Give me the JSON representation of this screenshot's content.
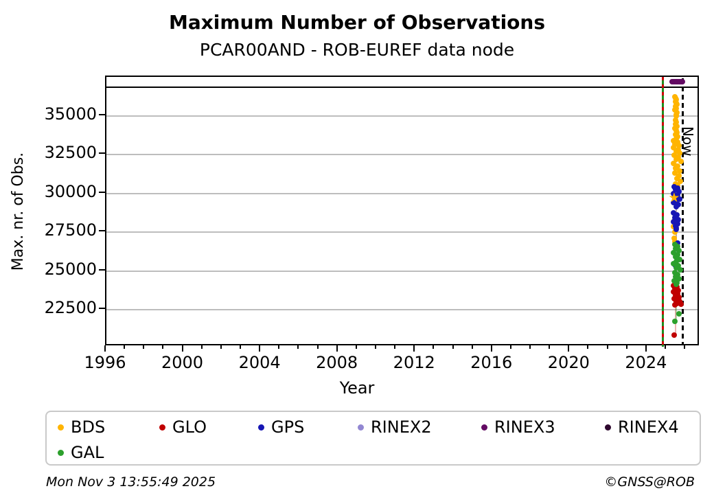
{
  "title": "Maximum Number of Observations",
  "subtitle": "PCAR00AND - ROB-EUREF data node",
  "footer": {
    "timestamp": "Mon Nov  3 13:55:49 2025",
    "credit": "©GNSS@ROB"
  },
  "now_label": "Now",
  "colors": {
    "BDS": "#ffb400",
    "GLO": "#c00000",
    "GPS": "#1616b4",
    "GAL": "#2ca02c",
    "RINEX2": "#9287d2",
    "RINEX3": "#630b63",
    "RINEX4": "#2e082e",
    "grid": "#bdbdbd",
    "axis": "#000000",
    "start_line_green": "#1e8c1e",
    "start_line_red": "#cc0000",
    "now_line": "#000000"
  },
  "legend": {
    "rows": [
      [
        {
          "label": "BDS",
          "color": "BDS"
        },
        {
          "label": "GLO",
          "color": "GLO"
        },
        {
          "label": "GPS",
          "color": "GPS"
        },
        {
          "label": "RINEX2",
          "color": "RINEX2"
        },
        {
          "label": "RINEX3",
          "color": "RINEX3"
        },
        {
          "label": "RINEX4",
          "color": "RINEX4"
        }
      ],
      [
        {
          "label": "GAL",
          "color": "GAL"
        }
      ]
    ]
  },
  "chart_data": {
    "type": "scatter",
    "title": "Maximum Number of Observations",
    "subtitle": "PCAR00AND - ROB-EUREF data node",
    "xlabel": "Year",
    "ylabel": "Max. nr. of Obs.",
    "xlim": [
      1996,
      2026.74
    ],
    "ylim": [
      20130,
      37522
    ],
    "x_major_ticks": [
      1996,
      2000,
      2004,
      2008,
      2012,
      2016,
      2020,
      2024
    ],
    "x_minor_tick_step_years": 1,
    "x_minor_tick_last_year": 2026,
    "y_ticks": [
      22500,
      25000,
      27500,
      30000,
      32500,
      35000
    ],
    "grid": "horizontal-only",
    "legend_position": "below",
    "header_strip_divider_value": 36860,
    "vlines": [
      {
        "name": "data-start-line",
        "year": 2024.79,
        "style": "green-with-red-dashes"
      },
      {
        "name": "now-line",
        "year": 2025.84,
        "style": "black-dashed",
        "label": "Now"
      }
    ],
    "series": [
      {
        "name": "BDS",
        "color": "BDS",
        "connector": {
          "x": 2025.48,
          "from": 36250,
          "to": 26880,
          "opacity": 0.35
        },
        "points": [
          [
            2025.43,
            36250
          ],
          [
            2025.47,
            36160
          ],
          [
            2025.51,
            36060
          ],
          [
            2025.45,
            35950
          ],
          [
            2025.49,
            35850
          ],
          [
            2025.53,
            35740
          ],
          [
            2025.46,
            35620
          ],
          [
            2025.5,
            35500
          ],
          [
            2025.44,
            35380
          ],
          [
            2025.52,
            35240
          ],
          [
            2025.48,
            35100
          ],
          [
            2025.5,
            34980
          ],
          [
            2025.45,
            34720
          ],
          [
            2025.51,
            34600
          ],
          [
            2025.47,
            34470
          ],
          [
            2025.54,
            34340
          ],
          [
            2025.42,
            34210
          ],
          [
            2025.49,
            34080
          ],
          [
            2025.53,
            33950
          ],
          [
            2025.46,
            33820
          ],
          [
            2025.56,
            33680
          ],
          [
            2025.5,
            33550
          ],
          [
            2025.34,
            33400
          ],
          [
            2025.56,
            33310
          ],
          [
            2025.44,
            33200
          ],
          [
            2025.64,
            33090
          ],
          [
            2025.37,
            32970
          ],
          [
            2025.59,
            32850
          ],
          [
            2025.48,
            32730
          ],
          [
            2025.69,
            32610
          ],
          [
            2025.4,
            32480
          ],
          [
            2025.61,
            32350
          ],
          [
            2025.51,
            32210
          ],
          [
            2025.73,
            32070
          ],
          [
            2025.35,
            31930
          ],
          [
            2025.57,
            31790
          ],
          [
            2025.46,
            31640
          ],
          [
            2025.67,
            31480
          ],
          [
            2025.41,
            31320
          ],
          [
            2025.63,
            31150
          ],
          [
            2025.53,
            30980
          ],
          [
            2025.71,
            30810
          ],
          [
            2025.47,
            30640
          ],
          [
            2025.58,
            30540
          ],
          [
            2025.39,
            28230
          ],
          [
            2025.36,
            27880
          ],
          [
            2025.41,
            27500
          ],
          [
            2025.38,
            27120
          ],
          [
            2025.43,
            26880
          ]
        ],
        "special_markers": [
          {
            "shape": "star",
            "point": [
              2025.44,
              29690
            ]
          }
        ]
      },
      {
        "name": "GLO",
        "color": "GLO",
        "connector": {
          "x": 2025.47,
          "from": 24090,
          "to": 20880,
          "opacity": 0.3
        },
        "points": [
          [
            2025.37,
            24090
          ],
          [
            2025.53,
            23990
          ],
          [
            2025.44,
            23880
          ],
          [
            2025.6,
            23770
          ],
          [
            2025.35,
            23660
          ],
          [
            2025.56,
            23550
          ],
          [
            2025.46,
            23440
          ],
          [
            2025.64,
            23330
          ],
          [
            2025.4,
            23220
          ],
          [
            2025.58,
            23110
          ],
          [
            2025.48,
            23000
          ],
          [
            2025.52,
            22920
          ],
          [
            2025.68,
            23050
          ],
          [
            2025.72,
            22960
          ],
          [
            2025.76,
            22890
          ],
          [
            2025.42,
            22850
          ],
          [
            2025.4,
            20880
          ]
        ]
      },
      {
        "name": "GPS",
        "color": "GPS",
        "connector": {
          "x": 2025.49,
          "from": 30460,
          "to": 25350,
          "opacity": 0.3
        },
        "points": [
          [
            2025.39,
            30460
          ],
          [
            2025.56,
            30360
          ],
          [
            2025.46,
            30250
          ],
          [
            2025.63,
            30130
          ],
          [
            2025.36,
            30010
          ],
          [
            2025.58,
            29890
          ],
          [
            2025.44,
            29770
          ],
          [
            2025.69,
            29650
          ],
          [
            2025.51,
            29530
          ],
          [
            2025.34,
            29410
          ],
          [
            2025.61,
            29290
          ],
          [
            2025.48,
            29170
          ],
          [
            2025.35,
            28740
          ],
          [
            2025.53,
            28610
          ],
          [
            2025.42,
            28470
          ],
          [
            2025.6,
            28330
          ],
          [
            2025.37,
            28190
          ],
          [
            2025.55,
            28050
          ],
          [
            2025.45,
            27910
          ],
          [
            2025.5,
            27770
          ],
          [
            2025.48,
            27690
          ],
          [
            2025.58,
            26810
          ],
          [
            2025.46,
            25350
          ]
        ]
      },
      {
        "name": "RINEX2",
        "color": "RINEX2",
        "points": []
      },
      {
        "name": "RINEX3",
        "color": "RINEX3",
        "points": [
          [
            2025.3,
            37210
          ],
          [
            2025.36,
            37210
          ],
          [
            2025.42,
            37210
          ],
          [
            2025.48,
            37210
          ],
          [
            2025.54,
            37210
          ],
          [
            2025.6,
            37210
          ],
          [
            2025.66,
            37210
          ],
          [
            2025.72,
            37210
          ],
          [
            2025.78,
            37210
          ],
          [
            2025.83,
            37210
          ]
        ]
      },
      {
        "name": "RINEX4",
        "color": "RINEX4",
        "points": []
      },
      {
        "name": "GAL",
        "color": "GAL",
        "connector": {
          "x": 2025.5,
          "from": 26740,
          "to": 21760,
          "opacity": 0.35
        },
        "points": [
          [
            2025.41,
            26740
          ],
          [
            2025.56,
            26610
          ],
          [
            2025.47,
            26470
          ],
          [
            2025.63,
            26330
          ],
          [
            2025.37,
            26190
          ],
          [
            2025.58,
            26050
          ],
          [
            2025.45,
            25910
          ],
          [
            2025.67,
            25770
          ],
          [
            2025.51,
            25630
          ],
          [
            2025.35,
            25490
          ],
          [
            2025.61,
            25350
          ],
          [
            2025.48,
            25210
          ],
          [
            2025.7,
            25070
          ],
          [
            2025.42,
            24930
          ],
          [
            2025.57,
            24790
          ],
          [
            2025.46,
            24650
          ],
          [
            2025.65,
            24510
          ],
          [
            2025.38,
            24370
          ],
          [
            2025.54,
            24230
          ],
          [
            2025.49,
            24150
          ],
          [
            2025.64,
            22250
          ],
          [
            2025.43,
            21760
          ]
        ]
      }
    ]
  }
}
